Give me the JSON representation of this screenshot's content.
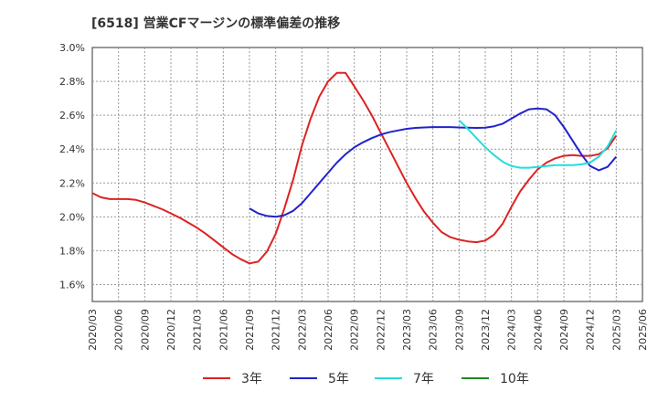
{
  "chart_data": {
    "type": "line",
    "title": "[6518]  営業CFマージンの標準偏差の推移",
    "ylim": [
      1.5,
      3.0
    ],
    "y_ticks": [
      "1.6%",
      "1.8%",
      "2.0%",
      "2.2%",
      "2.4%",
      "2.6%",
      "2.8%",
      "3.0%"
    ],
    "y_tick_values": [
      1.6,
      1.8,
      2.0,
      2.2,
      2.4,
      2.6,
      2.8,
      3.0
    ],
    "x_ticks": [
      "2020/03",
      "2020/06",
      "2020/09",
      "2020/12",
      "2021/03",
      "2021/06",
      "2021/09",
      "2021/12",
      "2022/03",
      "2022/06",
      "2022/09",
      "2022/12",
      "2023/03",
      "2023/06",
      "2023/09",
      "2023/12",
      "2024/03",
      "2024/06",
      "2024/09",
      "2024/12",
      "2025/03",
      "2025/06"
    ],
    "grid": true,
    "legend_position": "bottom",
    "series": [
      {
        "name": "3年",
        "color": "#dd2222",
        "x": [
          "2020/03",
          "2020/04",
          "2020/05",
          "2020/06",
          "2020/07",
          "2020/08",
          "2020/09",
          "2020/10",
          "2020/11",
          "2020/12",
          "2021/01",
          "2021/02",
          "2021/03",
          "2021/04",
          "2021/05",
          "2021/06",
          "2021/07",
          "2021/08",
          "2021/09",
          "2021/10",
          "2021/11",
          "2021/12",
          "2022/01",
          "2022/02",
          "2022/03",
          "2022/04",
          "2022/05",
          "2022/06",
          "2022/07",
          "2022/08",
          "2022/09",
          "2022/10",
          "2022/11",
          "2022/12",
          "2023/01",
          "2023/02",
          "2023/03",
          "2023/04",
          "2023/05",
          "2023/06",
          "2023/07",
          "2023/08",
          "2023/09",
          "2023/10",
          "2023/11",
          "2023/12",
          "2024/01",
          "2024/02",
          "2024/03",
          "2024/04",
          "2024/05",
          "2024/06",
          "2024/07",
          "2024/08",
          "2024/09",
          "2024/10",
          "2024/11",
          "2024/12",
          "2025/01",
          "2025/02",
          "2025/03"
        ],
        "values": [
          2.14,
          2.115,
          2.105,
          2.105,
          2.105,
          2.1,
          2.085,
          2.065,
          2.045,
          2.02,
          1.995,
          1.965,
          1.935,
          1.9,
          1.86,
          1.82,
          1.78,
          1.75,
          1.725,
          1.735,
          1.795,
          1.9,
          2.05,
          2.22,
          2.42,
          2.58,
          2.71,
          2.8,
          2.85,
          2.85,
          2.77,
          2.69,
          2.6,
          2.5,
          2.4,
          2.3,
          2.2,
          2.11,
          2.03,
          1.965,
          1.91,
          1.88,
          1.865,
          1.855,
          1.85,
          1.86,
          1.895,
          1.96,
          2.06,
          2.15,
          2.22,
          2.28,
          2.32,
          2.345,
          2.36,
          2.365,
          2.36,
          2.36,
          2.37,
          2.405,
          2.48
        ]
      },
      {
        "name": "5年",
        "color": "#2222cc",
        "x": [
          "2021/09",
          "2021/10",
          "2021/11",
          "2021/12",
          "2022/01",
          "2022/02",
          "2022/03",
          "2022/04",
          "2022/05",
          "2022/06",
          "2022/07",
          "2022/08",
          "2022/09",
          "2022/10",
          "2022/11",
          "2022/12",
          "2023/01",
          "2023/02",
          "2023/03",
          "2023/04",
          "2023/05",
          "2023/06",
          "2023/07",
          "2023/08",
          "2023/09",
          "2023/10",
          "2023/11",
          "2023/12",
          "2024/01",
          "2024/02",
          "2024/03",
          "2024/04",
          "2024/05",
          "2024/06",
          "2024/07",
          "2024/08",
          "2024/09",
          "2024/10",
          "2024/11",
          "2024/12",
          "2025/01",
          "2025/02",
          "2025/03"
        ],
        "values": [
          2.05,
          2.02,
          2.005,
          2.0,
          2.01,
          2.035,
          2.08,
          2.14,
          2.2,
          2.26,
          2.32,
          2.37,
          2.41,
          2.44,
          2.465,
          2.485,
          2.5,
          2.51,
          2.52,
          2.525,
          2.528,
          2.53,
          2.53,
          2.53,
          2.528,
          2.526,
          2.525,
          2.527,
          2.535,
          2.55,
          2.58,
          2.61,
          2.635,
          2.64,
          2.635,
          2.6,
          2.53,
          2.45,
          2.37,
          2.3,
          2.275,
          2.295,
          2.355
        ]
      },
      {
        "name": "7年",
        "color": "#22dddd",
        "x": [
          "2023/09",
          "2023/10",
          "2023/11",
          "2023/12",
          "2024/01",
          "2024/02",
          "2024/03",
          "2024/04",
          "2024/05",
          "2024/06",
          "2024/07",
          "2024/08",
          "2024/09",
          "2024/10",
          "2024/11",
          "2024/12",
          "2025/01",
          "2025/02",
          "2025/03"
        ],
        "values": [
          2.57,
          2.52,
          2.465,
          2.41,
          2.365,
          2.325,
          2.3,
          2.29,
          2.29,
          2.295,
          2.3,
          2.305,
          2.305,
          2.305,
          2.31,
          2.32,
          2.355,
          2.415,
          2.51
        ]
      },
      {
        "name": "10年",
        "color": "#228822",
        "x": [],
        "values": []
      }
    ]
  }
}
